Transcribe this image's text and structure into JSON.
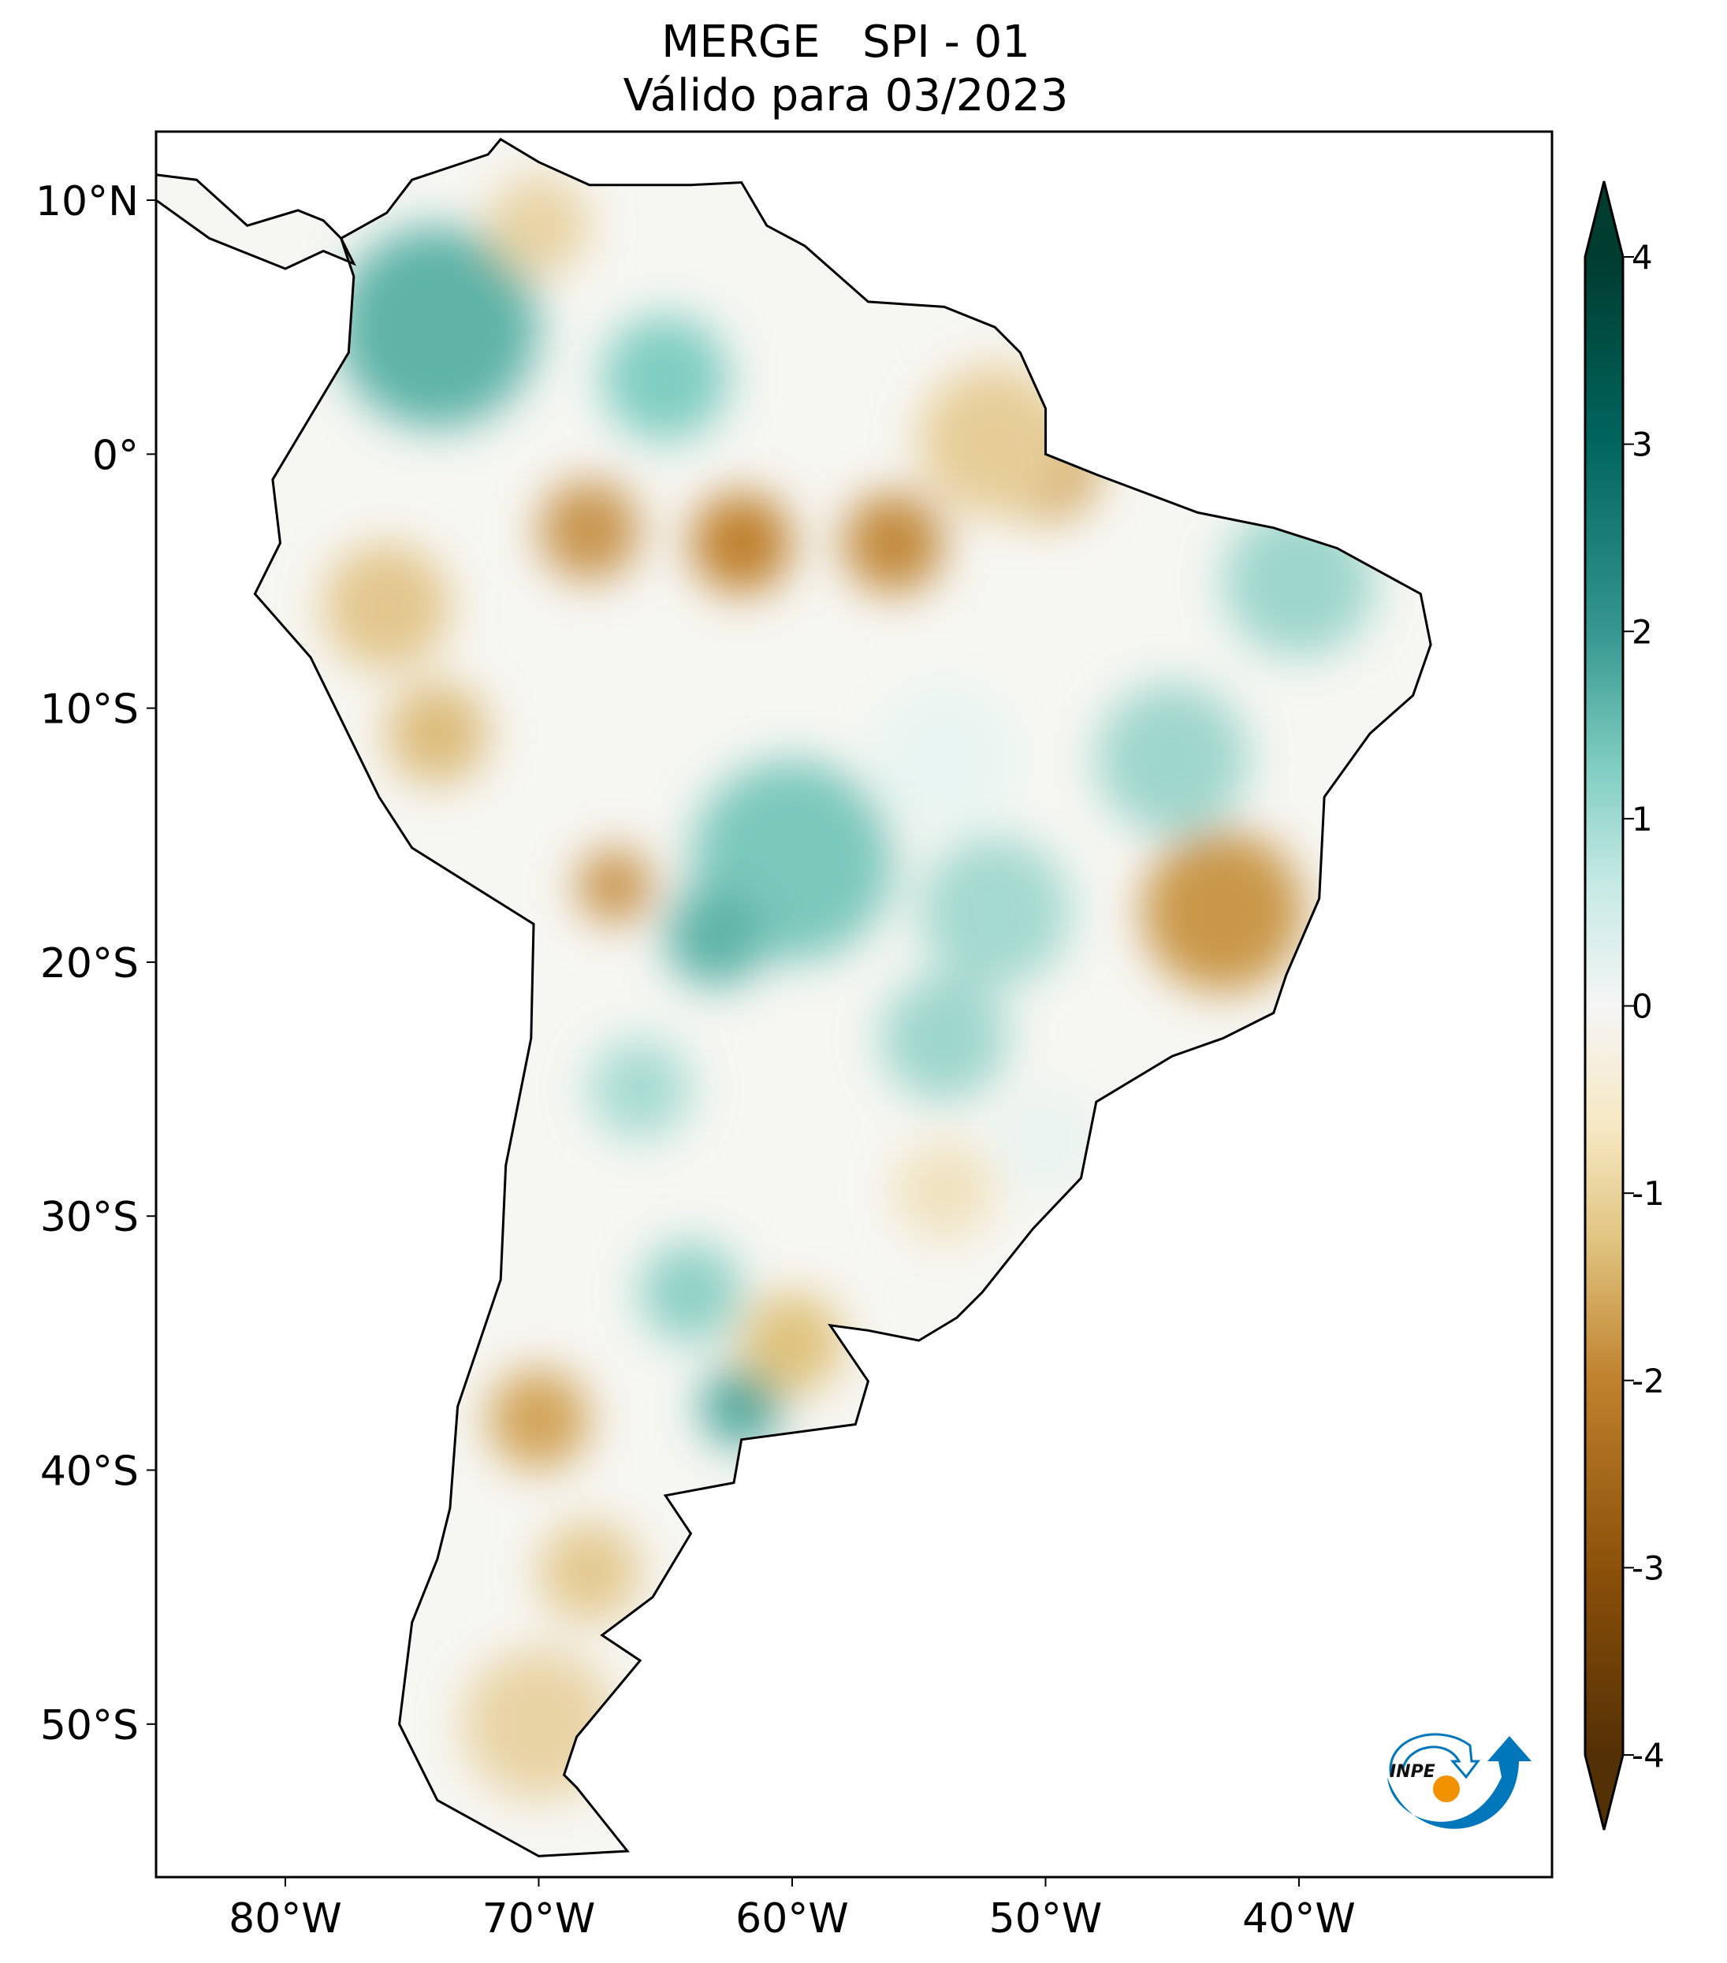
{
  "title": {
    "line1": "MERGE   SPI - 01",
    "line2": "Válido para 03/2023"
  },
  "map": {
    "projection": "PlateCarree",
    "lon_range": [
      -85,
      -30
    ],
    "lat_range": [
      -56,
      12.7
    ],
    "lat_ticks": [
      {
        "value": 10,
        "label": "10°N"
      },
      {
        "value": 0,
        "label": "0°"
      },
      {
        "value": -10,
        "label": "10°S"
      },
      {
        "value": -20,
        "label": "20°S"
      },
      {
        "value": -30,
        "label": "30°S"
      },
      {
        "value": -40,
        "label": "40°S"
      },
      {
        "value": -50,
        "label": "50°S"
      }
    ],
    "lon_ticks": [
      {
        "value": -80,
        "label": "80°W"
      },
      {
        "value": -70,
        "label": "70°W"
      },
      {
        "value": -60,
        "label": "60°W"
      },
      {
        "value": -50,
        "label": "50°W"
      },
      {
        "value": -40,
        "label": "40°W"
      }
    ]
  },
  "colorbar": {
    "colormap": "BrBG",
    "range": [
      -4,
      4
    ],
    "extend": "both",
    "ticks": [
      "4",
      "3",
      "2",
      "1",
      "0",
      "-1",
      "-2",
      "-3",
      "-4"
    ],
    "colors": [
      "#543005",
      "#8c510a",
      "#bf812d",
      "#dfc27d",
      "#f6e8c3",
      "#f5f5f5",
      "#c7eae5",
      "#80cdc1",
      "#35978f",
      "#01665e",
      "#003c30"
    ]
  },
  "logo": {
    "text": "INPE",
    "colors": {
      "blue": "#0077bb",
      "orange": "#f39200"
    }
  }
}
